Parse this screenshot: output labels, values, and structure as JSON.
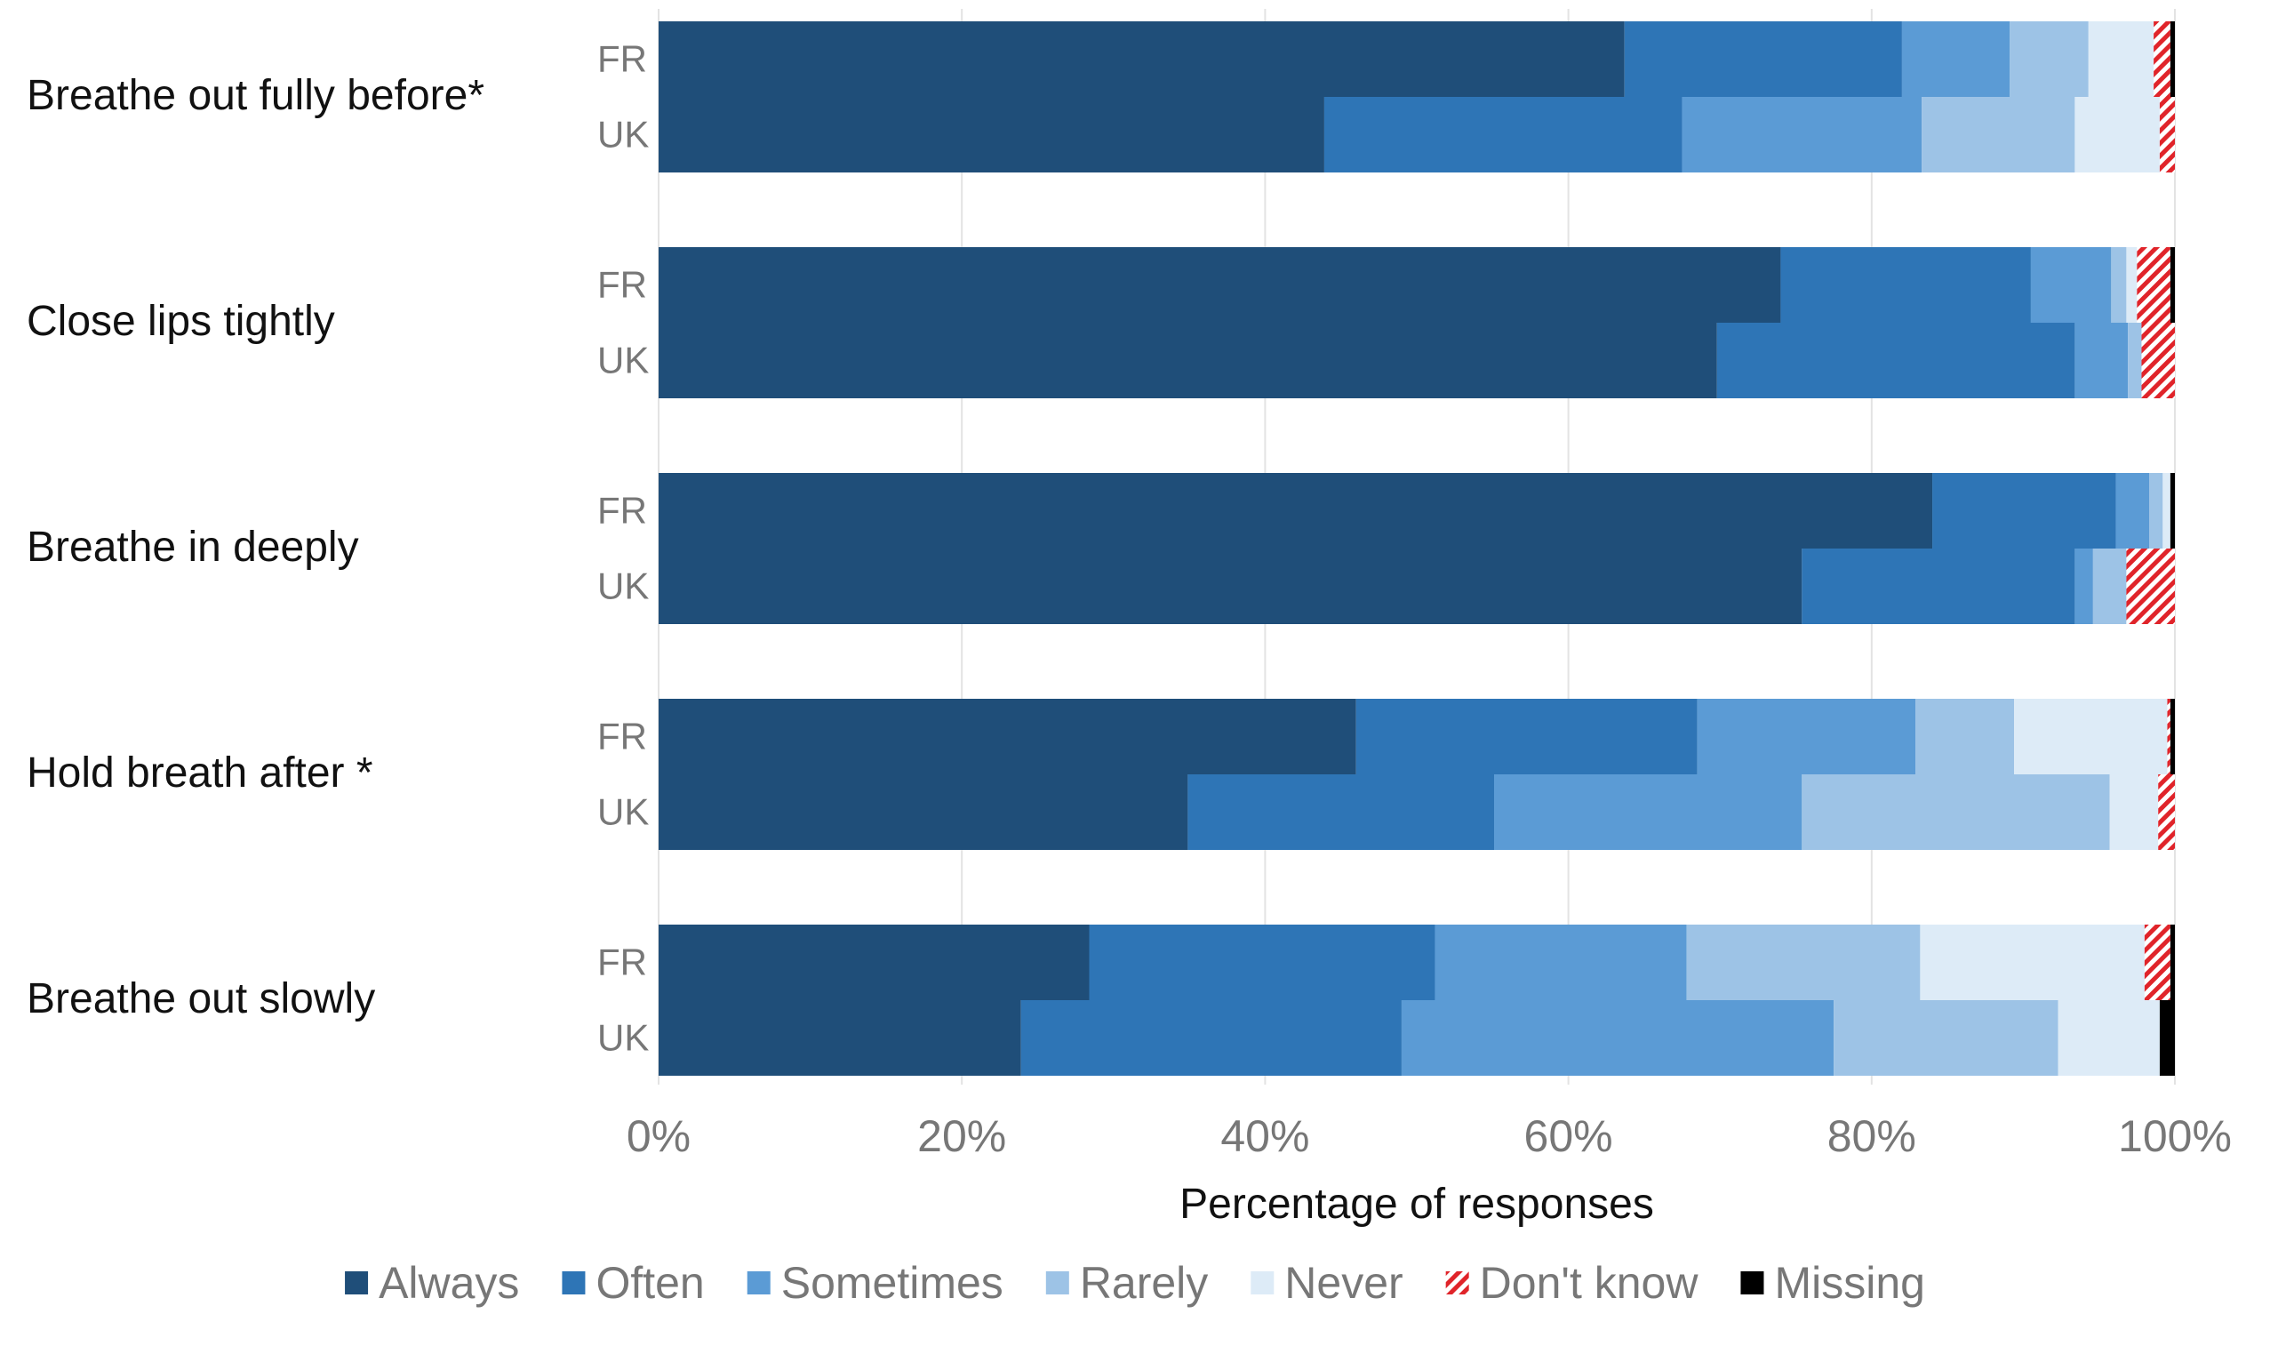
{
  "chart_data": {
    "type": "bar",
    "orientation": "horizontal",
    "stacked": true,
    "percent": true,
    "title": "",
    "xlabel": "Percentage of responses",
    "ylabel": "",
    "xlim": [
      0,
      100
    ],
    "xticks": [
      "0%",
      "20%",
      "40%",
      "60%",
      "80%",
      "100%"
    ],
    "grid": true,
    "legend_position": "bottom",
    "segments": [
      {
        "name": "Always",
        "color": "#1f4e79",
        "pattern": "solid"
      },
      {
        "name": "Often",
        "color": "#2e75b6",
        "pattern": "solid"
      },
      {
        "name": "Sometimes",
        "color": "#5b9bd5",
        "pattern": "solid"
      },
      {
        "name": "Rarely",
        "color": "#9dc3e6",
        "pattern": "solid"
      },
      {
        "name": "Never",
        "color": "#ddebf7",
        "pattern": "solid"
      },
      {
        "name": "Don't know",
        "color": "#e0242a",
        "pattern": "hatch"
      },
      {
        "name": "Missing",
        "color": "#000000",
        "pattern": "solid"
      }
    ],
    "groups": [
      {
        "category": "Breathe out fully before*",
        "bars": [
          {
            "country": "FR",
            "values": [
              63.7,
              18.3,
              7.1,
              5.2,
              4.3,
              1.1,
              0.3
            ]
          },
          {
            "country": "UK",
            "values": [
              43.9,
              23.6,
              15.8,
              10.1,
              5.6,
              1.0,
              0.0
            ]
          }
        ]
      },
      {
        "category": "Close lips tightly",
        "bars": [
          {
            "country": "FR",
            "values": [
              74.0,
              16.5,
              5.3,
              1.0,
              0.7,
              2.2,
              0.3
            ]
          },
          {
            "country": "UK",
            "values": [
              69.8,
              23.6,
              3.5,
              0.9,
              0.0,
              2.2,
              0.0
            ]
          }
        ]
      },
      {
        "category": "Breathe in deeply",
        "bars": [
          {
            "country": "FR",
            "values": [
              84.0,
              12.1,
              2.2,
              0.9,
              0.5,
              0.0,
              0.3
            ]
          },
          {
            "country": "UK",
            "values": [
              75.4,
              18.0,
              1.2,
              2.2,
              0.0,
              3.2,
              0.0
            ]
          }
        ]
      },
      {
        "category": "Hold breath after *",
        "bars": [
          {
            "country": "FR",
            "values": [
              46.0,
              22.5,
              14.4,
              6.5,
              10.1,
              0.2,
              0.3
            ]
          },
          {
            "country": "UK",
            "values": [
              34.9,
              20.2,
              20.3,
              20.3,
              3.2,
              1.1,
              0.0
            ]
          }
        ]
      },
      {
        "category": "Breathe out slowly",
        "bars": [
          {
            "country": "FR",
            "values": [
              28.4,
              22.8,
              16.6,
              15.4,
              14.8,
              1.7,
              0.3
            ]
          },
          {
            "country": "UK",
            "values": [
              23.9,
              25.1,
              28.5,
              14.8,
              6.7,
              0.0,
              1.0
            ]
          }
        ]
      }
    ]
  }
}
